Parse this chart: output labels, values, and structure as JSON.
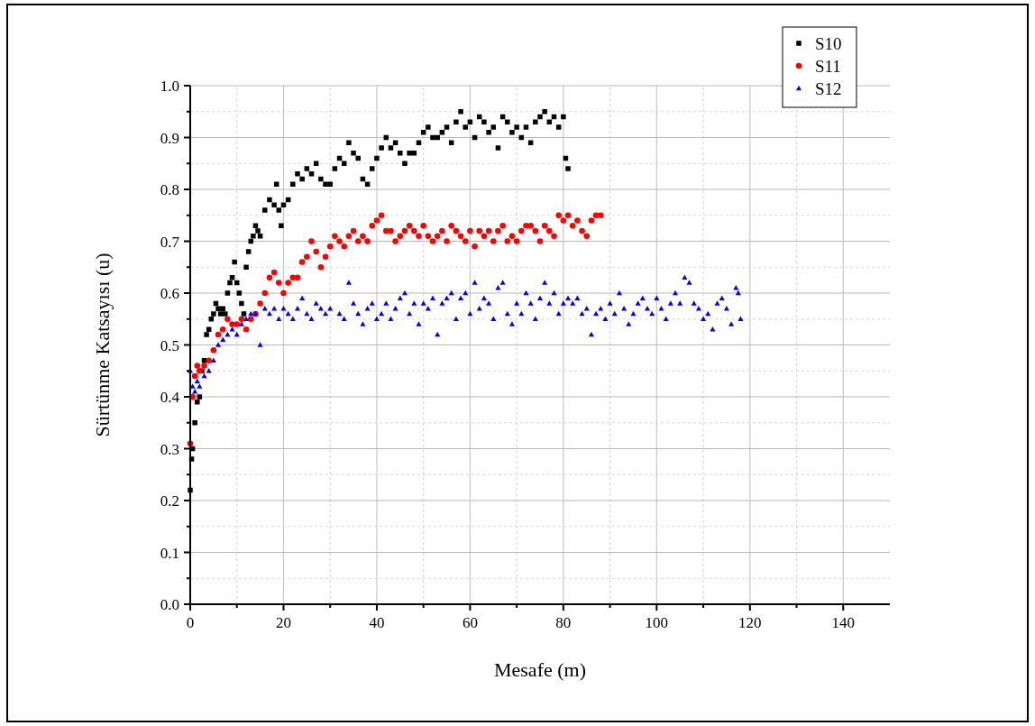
{
  "chart_data": {
    "type": "scatter",
    "xlabel": "Mesafe (m)",
    "ylabel": "Sürtünme Katsayısı (u)",
    "xlim": [
      0,
      150
    ],
    "ylim": [
      0,
      1
    ],
    "xticks": [
      0,
      {
        "value": 10,
        "label": null
      },
      20,
      {
        "value": 30,
        "label": null
      },
      40,
      {
        "value": 50,
        "label": null
      },
      60,
      {
        "value": 70,
        "label": null
      },
      80,
      {
        "value": 90,
        "label": null
      },
      100,
      {
        "value": 110,
        "label": null
      },
      120,
      {
        "value": 130,
        "label": null
      },
      140
    ],
    "yticks": [
      {
        "value": 0,
        "label": "0.0"
      },
      {
        "value": 0.05,
        "label": null
      },
      0.1,
      {
        "value": 0.15,
        "label": null
      },
      0.2,
      {
        "value": 0.25,
        "label": null
      },
      0.3,
      {
        "value": 0.35,
        "label": null
      },
      0.4,
      {
        "value": 0.45,
        "label": null
      },
      0.5,
      {
        "value": 0.55,
        "label": null
      },
      0.6,
      {
        "value": 0.65,
        "label": null
      },
      0.7,
      {
        "value": 0.75,
        "label": null
      },
      0.8,
      {
        "value": 0.85,
        "label": null
      },
      0.9,
      {
        "value": 0.95,
        "label": null
      },
      {
        "value": 1,
        "label": "1.0"
      }
    ],
    "grid": true,
    "legend": "top right",
    "series": [
      {
        "name": "S10",
        "color": "#000000",
        "marker": "square",
        "x": [
          0,
          0.3,
          0.5,
          1,
          1.5,
          2,
          2.5,
          3,
          3.5,
          4,
          4.5,
          5,
          5.5,
          6,
          6.5,
          7,
          7.5,
          8,
          8.5,
          9,
          9.5,
          10,
          10.5,
          11,
          11.5,
          12,
          12.5,
          13,
          13.5,
          14,
          14.5,
          15,
          16,
          17,
          18,
          18.5,
          19,
          19.5,
          20,
          21,
          22,
          23,
          24,
          25,
          26,
          27,
          28,
          29,
          30,
          31,
          32,
          33,
          34,
          35,
          36,
          37,
          38,
          39,
          40,
          41,
          42,
          43,
          44,
          45,
          46,
          47,
          48,
          49,
          50,
          51,
          52,
          53,
          54,
          55,
          56,
          57,
          58,
          59,
          60,
          61,
          62,
          63,
          64,
          65,
          66,
          67,
          68,
          69,
          70,
          71,
          72,
          73,
          74,
          75,
          76,
          77,
          78,
          79,
          80,
          80.5,
          81
        ],
        "values": [
          0.22,
          0.28,
          0.3,
          0.35,
          0.39,
          0.4,
          0.45,
          0.47,
          0.52,
          0.53,
          0.55,
          0.56,
          0.58,
          0.57,
          0.56,
          0.57,
          0.56,
          0.6,
          0.62,
          0.63,
          0.66,
          0.62,
          0.6,
          0.58,
          0.56,
          0.65,
          0.68,
          0.7,
          0.71,
          0.73,
          0.72,
          0.71,
          0.76,
          0.78,
          0.77,
          0.81,
          0.76,
          0.73,
          0.77,
          0.78,
          0.81,
          0.83,
          0.82,
          0.84,
          0.83,
          0.85,
          0.82,
          0.81,
          0.81,
          0.84,
          0.86,
          0.85,
          0.89,
          0.87,
          0.86,
          0.82,
          0.81,
          0.84,
          0.86,
          0.88,
          0.9,
          0.88,
          0.89,
          0.87,
          0.85,
          0.87,
          0.87,
          0.89,
          0.91,
          0.92,
          0.9,
          0.9,
          0.91,
          0.92,
          0.89,
          0.93,
          0.95,
          0.92,
          0.93,
          0.9,
          0.94,
          0.93,
          0.91,
          0.92,
          0.88,
          0.94,
          0.93,
          0.91,
          0.92,
          0.9,
          0.92,
          0.89,
          0.93,
          0.94,
          0.95,
          0.93,
          0.94,
          0.92,
          0.94,
          0.86,
          0.84
        ]
      },
      {
        "name": "S11",
        "color": "#ff0000",
        "marker": "circle",
        "x": [
          0,
          0.5,
          1,
          1.5,
          2,
          3,
          4,
          5,
          6,
          7,
          8,
          9,
          10,
          11,
          12,
          13,
          14,
          15,
          16,
          17,
          18,
          19,
          20,
          21,
          22,
          23,
          24,
          25,
          26,
          27,
          28,
          29,
          30,
          31,
          32,
          33,
          34,
          35,
          36,
          37,
          38,
          39,
          40,
          41,
          42,
          43,
          44,
          45,
          46,
          47,
          48,
          49,
          50,
          51,
          52,
          53,
          54,
          55,
          56,
          57,
          58,
          59,
          60,
          61,
          62,
          63,
          64,
          65,
          66,
          67,
          68,
          69,
          70,
          71,
          72,
          73,
          74,
          75,
          76,
          77,
          78,
          79,
          80,
          81,
          82,
          83,
          84,
          85,
          86,
          87,
          88
        ],
        "values": [
          0.31,
          0.4,
          0.44,
          0.46,
          0.45,
          0.46,
          0.47,
          0.49,
          0.52,
          0.53,
          0.55,
          0.54,
          0.54,
          0.55,
          0.53,
          0.55,
          0.56,
          0.58,
          0.6,
          0.63,
          0.64,
          0.62,
          0.6,
          0.62,
          0.63,
          0.63,
          0.66,
          0.67,
          0.7,
          0.68,
          0.65,
          0.67,
          0.69,
          0.71,
          0.7,
          0.69,
          0.71,
          0.72,
          0.7,
          0.71,
          0.7,
          0.73,
          0.74,
          0.75,
          0.72,
          0.72,
          0.7,
          0.71,
          0.72,
          0.73,
          0.72,
          0.71,
          0.73,
          0.71,
          0.7,
          0.71,
          0.72,
          0.7,
          0.73,
          0.72,
          0.71,
          0.7,
          0.72,
          0.69,
          0.72,
          0.71,
          0.72,
          0.7,
          0.72,
          0.73,
          0.7,
          0.71,
          0.7,
          0.72,
          0.73,
          0.73,
          0.72,
          0.7,
          0.73,
          0.72,
          0.71,
          0.75,
          0.74,
          0.75,
          0.73,
          0.74,
          0.72,
          0.71,
          0.74,
          0.75,
          0.75
        ]
      },
      {
        "name": "S12",
        "color": "#0000ff",
        "marker": "triangle",
        "x": [
          0,
          0.5,
          1,
          1.5,
          2,
          3,
          4,
          5,
          6,
          7,
          8,
          9,
          10,
          11,
          12,
          13,
          14,
          15,
          16,
          17,
          18,
          19,
          20,
          21,
          22,
          23,
          24,
          25,
          26,
          27,
          28,
          29,
          30,
          32,
          33,
          34,
          35,
          36,
          37,
          38,
          39,
          40,
          41,
          42,
          43,
          44,
          45,
          46,
          47,
          48,
          49,
          50,
          51,
          52,
          53,
          54,
          55,
          56,
          57,
          58,
          59,
          60,
          61,
          62,
          63,
          64,
          65,
          66,
          67,
          68,
          69,
          70,
          71,
          72,
          73,
          74,
          75,
          76,
          77,
          78,
          79,
          80,
          81,
          82,
          83,
          84,
          85,
          86,
          87,
          88,
          89,
          90,
          91,
          92,
          93,
          94,
          95,
          96,
          97,
          98,
          99,
          100,
          101,
          102,
          103,
          104,
          105,
          106,
          107,
          108,
          109,
          110,
          111,
          112,
          113,
          114,
          115,
          116,
          117,
          117.5,
          118
        ],
        "values": [
          0.45,
          0.42,
          0.41,
          0.43,
          0.42,
          0.44,
          0.45,
          0.47,
          0.5,
          0.51,
          0.52,
          0.53,
          0.52,
          0.54,
          0.55,
          0.56,
          0.56,
          0.5,
          0.57,
          0.56,
          0.57,
          0.55,
          0.57,
          0.56,
          0.55,
          0.57,
          0.59,
          0.56,
          0.55,
          0.58,
          0.57,
          0.56,
          0.57,
          0.56,
          0.55,
          0.62,
          0.58,
          0.56,
          0.54,
          0.57,
          0.58,
          0.55,
          0.56,
          0.58,
          0.55,
          0.57,
          0.59,
          0.6,
          0.56,
          0.58,
          0.54,
          0.58,
          0.57,
          0.59,
          0.52,
          0.58,
          0.59,
          0.6,
          0.55,
          0.59,
          0.6,
          0.56,
          0.62,
          0.57,
          0.59,
          0.58,
          0.55,
          0.61,
          0.62,
          0.56,
          0.54,
          0.58,
          0.56,
          0.6,
          0.58,
          0.55,
          0.59,
          0.62,
          0.58,
          0.6,
          0.56,
          0.58,
          0.59,
          0.58,
          0.59,
          0.56,
          0.57,
          0.52,
          0.56,
          0.57,
          0.55,
          0.58,
          0.56,
          0.6,
          0.57,
          0.54,
          0.56,
          0.58,
          0.59,
          0.57,
          0.56,
          0.59,
          0.57,
          0.55,
          0.58,
          0.6,
          0.58,
          0.63,
          0.62,
          0.58,
          0.57,
          0.55,
          0.56,
          0.53,
          0.58,
          0.59,
          0.57,
          0.54,
          0.61,
          0.6,
          0.55
        ]
      }
    ]
  }
}
